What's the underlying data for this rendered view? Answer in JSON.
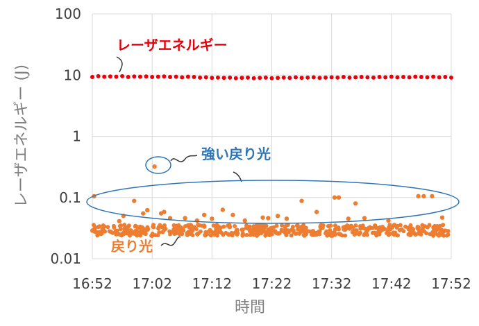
{
  "chart_data": {
    "type": "scatter",
    "title": "",
    "xlabel": "時間",
    "ylabel": "レーザエネルギー (J)",
    "y_scale": "log",
    "ylim": [
      0.01,
      100
    ],
    "xlim": [
      "16:52",
      "17:52"
    ],
    "x_ticks": [
      "16:52",
      "17:02",
      "17:12",
      "17:22",
      "17:32",
      "17:42",
      "17:52"
    ],
    "y_ticks": [
      "0.01",
      "0.1",
      "1",
      "10",
      "100"
    ],
    "grid": true,
    "annotations": {
      "laser_label": "レーザエネルギー",
      "strong_return_label": "強い戻り光",
      "return_label": "戻り光"
    },
    "colors": {
      "laser": "#e8000b",
      "return": "#ed7d31",
      "ellipse": "#2e75b6",
      "grid": "#d9d9d9"
    },
    "series": [
      {
        "key": "laser",
        "values": [
          [
            0.0,
            9.3
          ],
          [
            1.0,
            9.6
          ],
          [
            2.0,
            9.4
          ],
          [
            3.0,
            9.5
          ],
          [
            4.0,
            9.4
          ],
          [
            5.0,
            9.6
          ],
          [
            6.0,
            9.3
          ],
          [
            7.0,
            9.5
          ],
          [
            8.0,
            9.4
          ],
          [
            9.0,
            9.5
          ],
          [
            10.0,
            9.3
          ],
          [
            11.0,
            9.4
          ],
          [
            12.0,
            9.5
          ],
          [
            13.0,
            9.3
          ],
          [
            14.0,
            9.4
          ],
          [
            15.0,
            9.2
          ],
          [
            16.0,
            9.4
          ],
          [
            17.0,
            9.3
          ],
          [
            18.0,
            9.1
          ],
          [
            19.0,
            9.2
          ],
          [
            20.0,
            9.0
          ],
          [
            21.0,
            9.1
          ],
          [
            22.0,
            9.0
          ],
          [
            23.0,
            9.1
          ],
          [
            24.0,
            8.9
          ],
          [
            25.0,
            9.0
          ],
          [
            26.0,
            9.1
          ],
          [
            27.0,
            8.9
          ],
          [
            28.0,
            9.0
          ],
          [
            29.0,
            9.1
          ],
          [
            30.0,
            8.9
          ],
          [
            31.0,
            9.0
          ],
          [
            32.0,
            9.1
          ],
          [
            33.0,
            9.0
          ],
          [
            34.0,
            9.2
          ],
          [
            35.0,
            9.0
          ],
          [
            36.0,
            9.1
          ],
          [
            37.0,
            9.2
          ],
          [
            38.0,
            9.0
          ],
          [
            39.0,
            9.1
          ],
          [
            40.0,
            9.2
          ],
          [
            41.0,
            9.1
          ],
          [
            42.0,
            9.3
          ],
          [
            43.0,
            9.1
          ],
          [
            44.0,
            9.2
          ],
          [
            45.0,
            9.3
          ],
          [
            46.0,
            9.2
          ],
          [
            47.0,
            9.1
          ],
          [
            48.0,
            9.3
          ],
          [
            49.0,
            9.2
          ],
          [
            50.0,
            9.4
          ],
          [
            51.0,
            9.2
          ],
          [
            52.0,
            9.3
          ],
          [
            53.0,
            9.2
          ],
          [
            54.0,
            9.4
          ],
          [
            55.0,
            9.3
          ],
          [
            56.0,
            9.2
          ],
          [
            57.0,
            9.4
          ],
          [
            58.0,
            9.2
          ],
          [
            59.0,
            9.3
          ],
          [
            60.0,
            9.1
          ]
        ]
      },
      {
        "key": "return",
        "values": [
          [
            0.3,
            0.105
          ],
          [
            4.5,
            0.041
          ],
          [
            5.2,
            0.05
          ],
          [
            7.0,
            0.088
          ],
          [
            8.5,
            0.055
          ],
          [
            9.2,
            0.062
          ],
          [
            10.4,
            0.32
          ],
          [
            11.5,
            0.055
          ],
          [
            12.0,
            0.058
          ],
          [
            13.0,
            0.046
          ],
          [
            15.5,
            0.046
          ],
          [
            17.5,
            0.042
          ],
          [
            18.7,
            0.052
          ],
          [
            20.0,
            0.045
          ],
          [
            21.8,
            0.063
          ],
          [
            23.5,
            0.052
          ],
          [
            25.5,
            0.042
          ],
          [
            28.5,
            0.047
          ],
          [
            29.4,
            0.046
          ],
          [
            31.0,
            0.05
          ],
          [
            32.5,
            0.045
          ],
          [
            35.0,
            0.088
          ],
          [
            37.5,
            0.058
          ],
          [
            40.5,
            0.1
          ],
          [
            41.2,
            0.1
          ],
          [
            42.8,
            0.045
          ],
          [
            44.0,
            0.08
          ],
          [
            45.5,
            0.046
          ],
          [
            49.5,
            0.042
          ],
          [
            54.5,
            0.105
          ],
          [
            55.4,
            0.105
          ],
          [
            56.8,
            0.105
          ],
          [
            58.5,
            0.047
          ]
        ]
      }
    ]
  }
}
